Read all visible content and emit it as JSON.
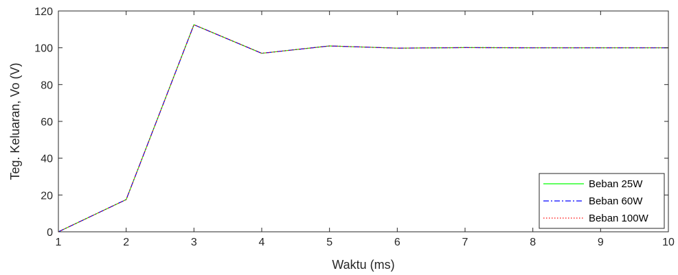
{
  "chart_data": {
    "type": "line",
    "xlabel": "Waktu (ms)",
    "ylabel": "Teg. Keluaran, Vo (V)",
    "xlim": [
      1,
      10
    ],
    "ylim": [
      0,
      120
    ],
    "xticks": [
      1,
      2,
      3,
      4,
      5,
      6,
      7,
      8,
      9,
      10
    ],
    "yticks": [
      0,
      20,
      40,
      60,
      80,
      100,
      120
    ],
    "grid": false,
    "legend_position": "bottom-right",
    "x": [
      1,
      2,
      3,
      4,
      5,
      6,
      7,
      8,
      9,
      10
    ],
    "series": [
      {
        "name": "Beban 25W",
        "color": "#00ff00",
        "style": "solid",
        "values": [
          0,
          17.5,
          112.5,
          97,
          101,
          99.8,
          100.1,
          100,
          100,
          100
        ]
      },
      {
        "name": "Beban 60W",
        "color": "#0000ff",
        "style": "dashdot",
        "values": [
          0,
          17.5,
          112.5,
          97,
          101,
          99.8,
          100.1,
          100,
          100,
          100
        ]
      },
      {
        "name": "Beban 100W",
        "color": "#ff0000",
        "style": "dotted",
        "values": [
          0,
          17.5,
          112.5,
          97,
          101,
          99.8,
          100.1,
          100,
          100,
          100
        ]
      }
    ]
  }
}
